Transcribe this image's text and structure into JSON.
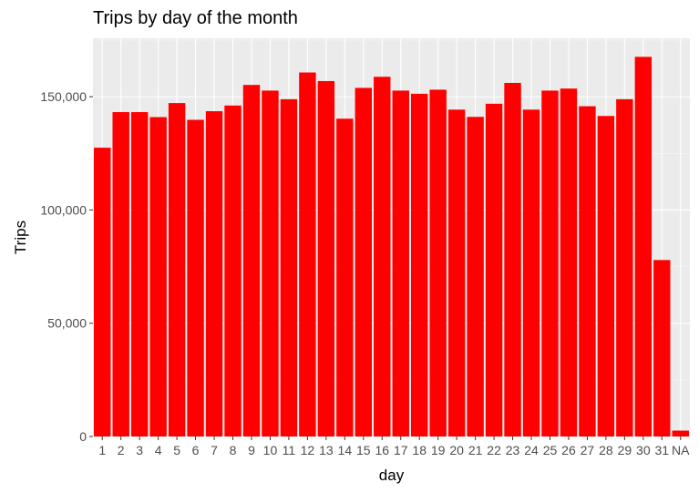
{
  "chart_data": {
    "type": "bar",
    "title": "Trips by day of the month",
    "xlabel": "day",
    "ylabel": "Trips",
    "categories": [
      "1",
      "2",
      "3",
      "4",
      "5",
      "6",
      "7",
      "8",
      "9",
      "10",
      "11",
      "12",
      "13",
      "14",
      "15",
      "16",
      "17",
      "18",
      "19",
      "20",
      "21",
      "22",
      "23",
      "24",
      "25",
      "26",
      "27",
      "28",
      "29",
      "30",
      "31",
      "NA"
    ],
    "values": [
      127500,
      143200,
      143200,
      141000,
      147200,
      139800,
      143600,
      146100,
      155200,
      152700,
      148900,
      160700,
      156900,
      140300,
      153900,
      158800,
      152700,
      151300,
      153100,
      144300,
      141100,
      146900,
      156100,
      144300,
      152700,
      153600,
      145800,
      141500,
      148900,
      167600,
      77900,
      2600
    ],
    "ylim": [
      0,
      175800
    ],
    "yticks": [
      0,
      50000,
      100000,
      150000
    ],
    "ytick_labels": [
      "0",
      "50,000",
      "100,000",
      "150,000"
    ],
    "grid": true,
    "legend": "none",
    "colors": {
      "bar": "#ff0000",
      "panel": "#ebebeb",
      "grid_major": "#ffffff",
      "grid_minor": "#f5f5f5"
    }
  }
}
